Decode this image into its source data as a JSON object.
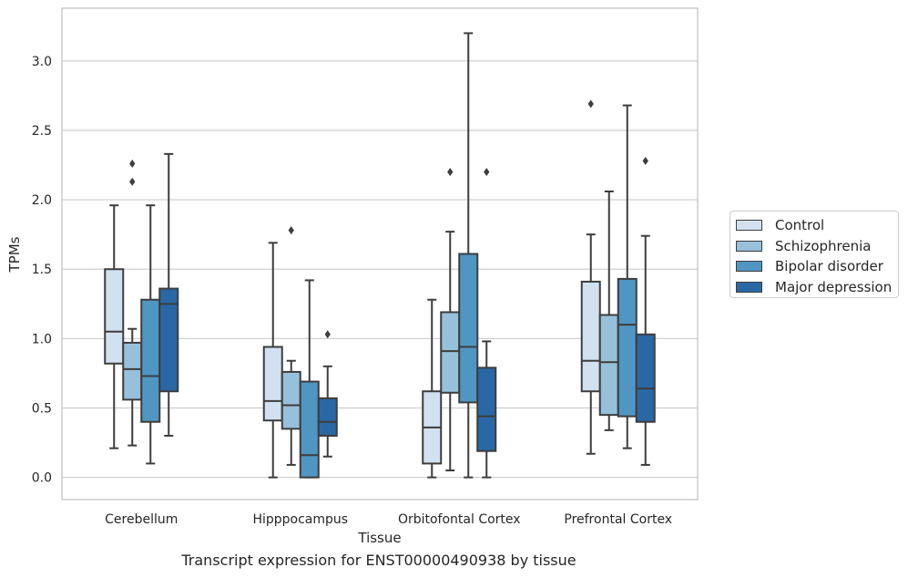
{
  "chart_data": {
    "type": "box",
    "xlabel": "Tissue",
    "ylabel": "TPMs",
    "caption": "Transcript expression for ENST00000490938 by tissue",
    "categories": [
      "Cerebellum",
      "Hipppocampus",
      "Orbitofontal Cortex",
      "Prefrontal Cortex"
    ],
    "ylim": [
      -0.16,
      3.38
    ],
    "yticks": [
      0.0,
      0.5,
      1.0,
      1.5,
      2.0,
      2.5,
      3.0
    ],
    "ytick_labels": [
      "0.0",
      "0.5",
      "1.0",
      "1.5",
      "2.0",
      "2.5",
      "3.0"
    ],
    "grid": true,
    "legend_position": "right, outside plot",
    "series": [
      {
        "name": "Control",
        "color": "#d1e1f0",
        "boxes": [
          {
            "whislo": 0.21,
            "q1": 0.82,
            "med": 1.05,
            "q3": 1.5,
            "whishi": 1.96,
            "fliers": []
          },
          {
            "whislo": 0.0,
            "q1": 0.41,
            "med": 0.55,
            "q3": 0.94,
            "whishi": 1.69,
            "fliers": []
          },
          {
            "whislo": 0.0,
            "q1": 0.1,
            "med": 0.36,
            "q3": 0.62,
            "whishi": 1.28,
            "fliers": []
          },
          {
            "whislo": 0.17,
            "q1": 0.62,
            "med": 0.84,
            "q3": 1.41,
            "whishi": 1.75,
            "fliers": [
              2.69
            ]
          }
        ]
      },
      {
        "name": "Schizophrenia",
        "color": "#97c0da",
        "boxes": [
          {
            "whislo": 0.23,
            "q1": 0.56,
            "med": 0.78,
            "q3": 0.97,
            "whishi": 1.07,
            "fliers": [
              2.13,
              2.26
            ]
          },
          {
            "whislo": 0.09,
            "q1": 0.35,
            "med": 0.52,
            "q3": 0.76,
            "whishi": 0.84,
            "fliers": [
              1.78
            ]
          },
          {
            "whislo": 0.05,
            "q1": 0.61,
            "med": 0.91,
            "q3": 1.19,
            "whishi": 1.77,
            "fliers": [
              2.2
            ]
          },
          {
            "whislo": 0.34,
            "q1": 0.45,
            "med": 0.83,
            "q3": 1.17,
            "whishi": 2.06,
            "fliers": []
          }
        ]
      },
      {
        "name": "Bipolar disorder",
        "color": "#5096c3",
        "boxes": [
          {
            "whislo": 0.1,
            "q1": 0.4,
            "med": 0.73,
            "q3": 1.28,
            "whishi": 1.96,
            "fliers": []
          },
          {
            "whislo": 0.0,
            "q1": 0.0,
            "med": 0.16,
            "q3": 0.69,
            "whishi": 1.42,
            "fliers": []
          },
          {
            "whislo": 0.0,
            "q1": 0.54,
            "med": 0.94,
            "q3": 1.61,
            "whishi": 3.2,
            "fliers": []
          },
          {
            "whislo": 0.21,
            "q1": 0.44,
            "med": 1.1,
            "q3": 1.43,
            "whishi": 2.68,
            "fliers": []
          }
        ]
      },
      {
        "name": "Major depression",
        "color": "#2a68a5",
        "boxes": [
          {
            "whislo": 0.3,
            "q1": 0.62,
            "med": 1.25,
            "q3": 1.36,
            "whishi": 2.33,
            "fliers": []
          },
          {
            "whislo": 0.15,
            "q1": 0.3,
            "med": 0.4,
            "q3": 0.57,
            "whishi": 0.8,
            "fliers": [
              1.03
            ]
          },
          {
            "whislo": 0.0,
            "q1": 0.19,
            "med": 0.44,
            "q3": 0.79,
            "whishi": 0.98,
            "fliers": [
              2.2
            ]
          },
          {
            "whislo": 0.09,
            "q1": 0.4,
            "med": 0.64,
            "q3": 1.03,
            "whishi": 1.74,
            "fliers": [
              2.28
            ]
          }
        ]
      }
    ]
  }
}
